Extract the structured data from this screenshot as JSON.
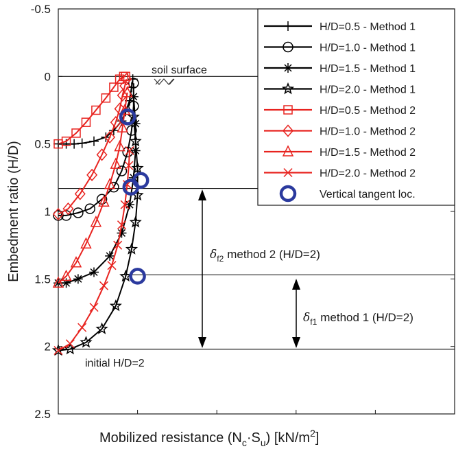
{
  "chart_data": {
    "type": "line",
    "xlabel": "Mobilized resistance (N",
    "xlabel_sub1": "c",
    "xlabel_dot": "·S",
    "xlabel_sub2": "u",
    "xlabel_unit": ") [kN/m",
    "xlabel_sup": "2",
    "xlabel_close": "]",
    "ylabel": "Embedment ratio (H/D)",
    "y_reversed": true,
    "ylim": [
      -0.5,
      2.5
    ],
    "y_ticks": [
      "-0.5",
      "0",
      "0.5",
      "1",
      "1.5",
      "2",
      "2.5"
    ],
    "y_tick_values": [
      -0.5,
      0,
      0.5,
      1,
      1.5,
      2,
      2.5
    ],
    "xlim": [
      0,
      1
    ],
    "x_tick_labels_shown": false,
    "grid": false,
    "legend_position": "top-right",
    "legend": [
      {
        "label": "H/D=0.5 - Method 1",
        "color": "#000000",
        "marker": "plus"
      },
      {
        "label": "H/D=1.0 - Method 1",
        "color": "#000000",
        "marker": "circle"
      },
      {
        "label": "H/D=1.5 - Method 1",
        "color": "#000000",
        "marker": "asterisk"
      },
      {
        "label": "H/D=2.0 - Method 1",
        "color": "#000000",
        "marker": "star"
      },
      {
        "label": "H/D=0.5 - Method 2",
        "color": "#e8231f",
        "marker": "square"
      },
      {
        "label": "H/D=1.0 - Method 2",
        "color": "#e8231f",
        "marker": "diamond"
      },
      {
        "label": "H/D=1.5 - Method 2",
        "color": "#e8231f",
        "marker": "triangle"
      },
      {
        "label": "H/D=2.0 - Method 2",
        "color": "#e8231f",
        "marker": "x"
      },
      {
        "label": "Vertical tangent loc.",
        "color": "#2b3a9e",
        "marker": "bigcircle"
      }
    ],
    "series": [
      {
        "name": "H/D=0.5 - Method 1",
        "color": "#000000",
        "marker": "plus",
        "x": [
          0.0,
          0.02,
          0.04,
          0.06,
          0.09,
          0.12,
          0.14,
          0.16,
          0.17,
          0.18,
          0.185,
          0.188
        ],
        "y": [
          0.5,
          0.5,
          0.5,
          0.495,
          0.48,
          0.45,
          0.4,
          0.33,
          0.26,
          0.18,
          0.08,
          0.02
        ]
      },
      {
        "name": "H/D=1.0 - Method 1",
        "color": "#000000",
        "marker": "circle",
        "x": [
          0.0,
          0.02,
          0.05,
          0.08,
          0.11,
          0.14,
          0.16,
          0.175,
          0.185,
          0.19,
          0.19
        ],
        "y": [
          1.03,
          1.03,
          1.01,
          0.98,
          0.91,
          0.82,
          0.7,
          0.56,
          0.4,
          0.22,
          0.05
        ]
      },
      {
        "name": "H/D=1.5 - Method 1",
        "color": "#000000",
        "marker": "asterisk",
        "x": [
          0.0,
          0.02,
          0.05,
          0.09,
          0.13,
          0.16,
          0.18,
          0.19,
          0.195,
          0.195,
          0.19
        ],
        "y": [
          1.53,
          1.53,
          1.5,
          1.45,
          1.33,
          1.16,
          0.95,
          0.75,
          0.55,
          0.35,
          0.15
        ]
      },
      {
        "name": "H/D=2.0 - Method 1",
        "color": "#000000",
        "marker": "star",
        "x": [
          0.0,
          0.03,
          0.07,
          0.11,
          0.145,
          0.17,
          0.185,
          0.195,
          0.2,
          0.2,
          0.195,
          0.19
        ],
        "y": [
          2.03,
          2.02,
          1.97,
          1.87,
          1.7,
          1.48,
          1.28,
          1.08,
          0.88,
          0.68,
          0.48,
          0.3
        ]
      },
      {
        "name": "H/D=0.5 - Method 2",
        "color": "#e8231f",
        "marker": "square",
        "x": [
          0.0,
          0.02,
          0.045,
          0.07,
          0.095,
          0.12,
          0.14,
          0.155,
          0.165,
          0.17
        ],
        "y": [
          0.5,
          0.48,
          0.42,
          0.34,
          0.25,
          0.16,
          0.08,
          0.02,
          0.0,
          0.0
        ]
      },
      {
        "name": "H/D=1.0 - Method 2",
        "color": "#e8231f",
        "marker": "diamond",
        "x": [
          0.0,
          0.025,
          0.055,
          0.085,
          0.11,
          0.13,
          0.145,
          0.155,
          0.162,
          0.168,
          0.172
        ],
        "y": [
          1.02,
          0.98,
          0.87,
          0.73,
          0.58,
          0.45,
          0.34,
          0.24,
          0.14,
          0.07,
          0.02
        ]
      },
      {
        "name": "H/D=1.5 - Method 2",
        "color": "#e8231f",
        "marker": "triangle",
        "x": [
          0.0,
          0.02,
          0.045,
          0.07,
          0.095,
          0.115,
          0.13,
          0.145,
          0.155,
          0.162,
          0.168,
          0.174
        ],
        "y": [
          1.53,
          1.48,
          1.38,
          1.24,
          1.08,
          0.93,
          0.8,
          0.65,
          0.52,
          0.38,
          0.25,
          0.12
        ]
      },
      {
        "name": "H/D=2.0 - Method 2",
        "color": "#e8231f",
        "marker": "x",
        "x": [
          0.0,
          0.03,
          0.06,
          0.09,
          0.115,
          0.135,
          0.15,
          0.16,
          0.168,
          0.174,
          0.178,
          0.18
        ],
        "y": [
          2.03,
          1.98,
          1.86,
          1.71,
          1.55,
          1.4,
          1.25,
          1.1,
          0.95,
          0.8,
          0.66,
          0.55
        ]
      }
    ],
    "vertical_tangent": {
      "name": "Vertical tangent loc.",
      "color": "#2b3a9e",
      "x": [
        0.175,
        0.183,
        0.208,
        0.2
      ],
      "y": [
        0.3,
        0.82,
        0.77,
        1.48
      ]
    },
    "reference_lines": [
      {
        "y": 0.0,
        "x_start": 0.0
      },
      {
        "y": 0.83,
        "x_start": 0.0
      },
      {
        "y": 1.47,
        "x_start": 0.16
      },
      {
        "y": 2.02,
        "x_start": 0.0
      }
    ],
    "annotations": {
      "soil_surface": "soil surface",
      "initial": "initial H/D=2",
      "df2_label": "method 2 (H/D=2)",
      "df1_label": "method 1 (H/D=2)",
      "delta": "δ",
      "df2_sub": "f2",
      "df1_sub": "f1"
    }
  }
}
